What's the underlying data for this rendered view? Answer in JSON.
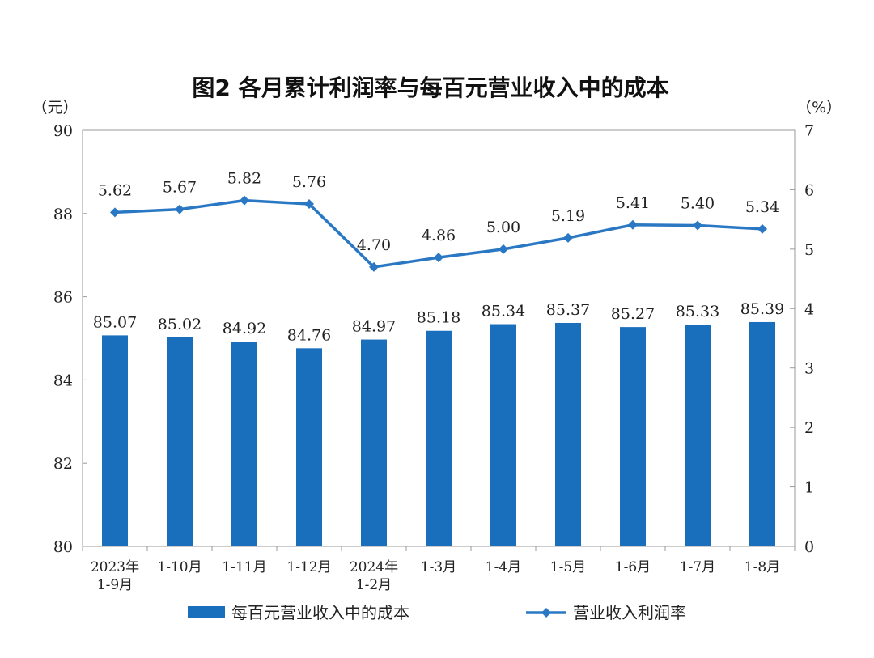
{
  "chart_data": {
    "type": "bar",
    "title": "图2  各月累计利润率与每百元营业收入中的成本",
    "left_unit": "（元）",
    "right_unit": "（%）",
    "categories": [
      [
        "2023年",
        "1-9月"
      ],
      [
        "1-10月"
      ],
      [
        "1-11月"
      ],
      [
        "1-12月"
      ],
      [
        "2024年",
        "1-2月"
      ],
      [
        "1-3月"
      ],
      [
        "1-4月"
      ],
      [
        "1-5月"
      ],
      [
        "1-6月"
      ],
      [
        "1-7月"
      ],
      [
        "1-8月"
      ]
    ],
    "left_axis": {
      "min": 80,
      "max": 90,
      "ticks": [
        80,
        82,
        84,
        86,
        88,
        90
      ]
    },
    "right_axis": {
      "min": 0,
      "max": 7,
      "ticks": [
        0,
        1,
        2,
        3,
        4,
        5,
        6,
        7
      ]
    },
    "series": [
      {
        "name": "每百元营业收入中的成本",
        "type": "bar",
        "axis": "left",
        "color": "#1a6fbd",
        "values": [
          85.07,
          85.02,
          84.92,
          84.76,
          84.97,
          85.18,
          85.34,
          85.37,
          85.27,
          85.33,
          85.39
        ],
        "labels": [
          "85.07",
          "85.02",
          "84.92",
          "84.76",
          "84.97",
          "85.18",
          "85.34",
          "85.37",
          "85.27",
          "85.33",
          "85.39"
        ]
      },
      {
        "name": "营业收入利润率",
        "type": "line",
        "axis": "right",
        "color": "#2a78c4",
        "values": [
          5.62,
          5.67,
          5.82,
          5.76,
          4.7,
          4.86,
          5.0,
          5.19,
          5.41,
          5.4,
          5.34
        ],
        "labels": [
          "5.62",
          "5.67",
          "5.82",
          "5.76",
          "4.70",
          "4.86",
          "5.00",
          "5.19",
          "5.41",
          "5.40",
          "5.34"
        ]
      }
    ],
    "legend": [
      "每百元营业收入中的成本",
      "营业收入利润率"
    ],
    "legend_position": "bottom"
  }
}
